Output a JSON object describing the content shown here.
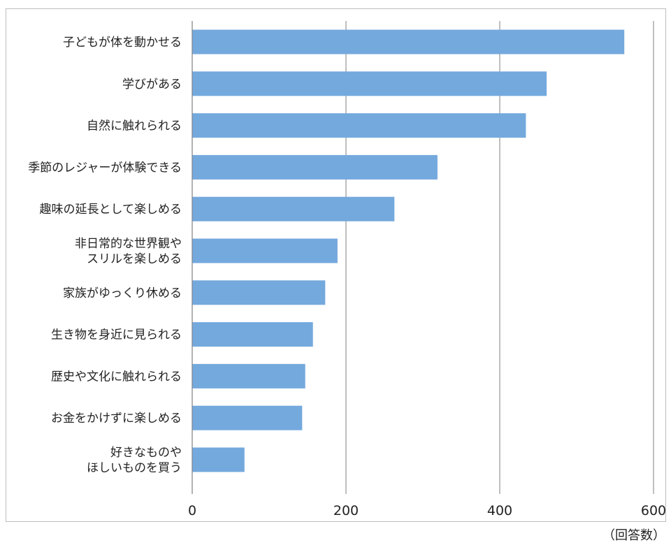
{
  "chart_data": {
    "type": "bar",
    "orientation": "horizontal",
    "categories": [
      [
        "子どもが体を動かせる"
      ],
      [
        "学びがある"
      ],
      [
        "自然に触れられる"
      ],
      [
        "季節のレジャーが体験できる"
      ],
      [
        "趣味の延長として楽しめる"
      ],
      [
        "非日常的な世界観や",
        "スリルを楽しめる"
      ],
      [
        "家族がゆっくり休める"
      ],
      [
        "生き物を身近に見られる"
      ],
      [
        "歴史や文化に触れられる"
      ],
      [
        "お金をかけずに楽しめる"
      ],
      [
        "好きなものや",
        "ほしいものを買う"
      ]
    ],
    "values": [
      562,
      461,
      434,
      319,
      263,
      189,
      173,
      157,
      147,
      143,
      68
    ],
    "xlim": [
      0,
      600
    ],
    "xticks": [
      0,
      200,
      400,
      600
    ],
    "grid": true,
    "bar_color": "#74a9dd",
    "unit_label": "（回答数）"
  }
}
